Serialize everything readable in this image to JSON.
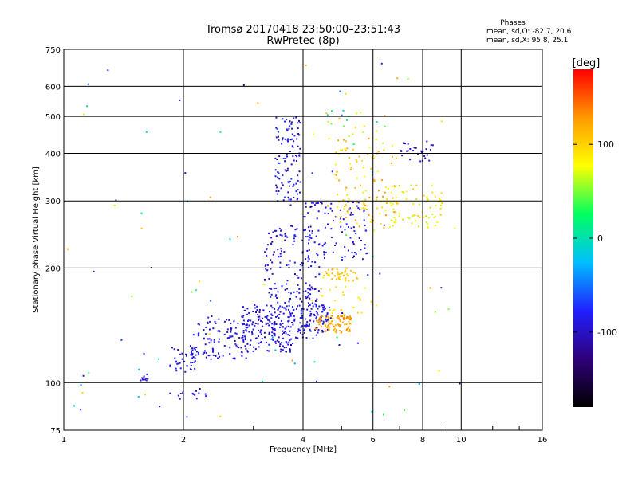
{
  "chart_data": {
    "type": "scatter",
    "title": "Tromsø 20170418 23:50:00–23:51:43",
    "subtitle": "RwPretec (8p)",
    "xlabel": "Frequency [MHz]",
    "ylabel": "Stationary phase Virtual Height [km]",
    "x_scale": "log",
    "y_scale": "log",
    "xlim": [
      1,
      16
    ],
    "ylim": [
      75,
      750
    ],
    "x_ticks": [
      1,
      2,
      4,
      6,
      8,
      10,
      16
    ],
    "y_ticks": [
      75,
      100,
      200,
      300,
      400,
      500,
      600,
      750
    ],
    "x_grid": [
      2,
      4,
      6,
      8,
      10
    ],
    "y_grid": [
      100,
      200,
      300,
      400,
      500,
      600
    ],
    "grid": true,
    "stats_heading": "Phases",
    "stats_line_o": "mean, sd,O: -82.7, 20.6",
    "stats_line_x": "mean, sd,X:  95.8, 25.1",
    "colorbar": {
      "label": "[deg]",
      "range": [
        -180,
        180
      ],
      "ticks": [
        100,
        0,
        -100
      ],
      "stops": [
        "#000000",
        "#30007a",
        "#2020ff",
        "#00bfff",
        "#00ff60",
        "#ffff00",
        "#ff9900",
        "#ff0000"
      ]
    },
    "clusters": [
      {
        "f": [
          1.85,
          2.15
        ],
        "h": [
          105,
          125
        ],
        "phase": [
          -115,
          -70
        ],
        "n": 40
      },
      {
        "f": [
          2.1,
          2.9
        ],
        "h": [
          115,
          150
        ],
        "phase": [
          -115,
          -70
        ],
        "n": 110
      },
      {
        "f": [
          2.8,
          3.8
        ],
        "h": [
          120,
          160
        ],
        "phase": [
          -115,
          -70
        ],
        "n": 170
      },
      {
        "f": [
          3.2,
          4.4
        ],
        "h": [
          130,
          260
        ],
        "phase": [
          -115,
          -70
        ],
        "n": 220
      },
      {
        "f": [
          3.4,
          3.95
        ],
        "h": [
          300,
          500
        ],
        "phase": [
          -120,
          -60
        ],
        "n": 110
      },
      {
        "f": [
          3.9,
          4.7
        ],
        "h": [
          135,
          160
        ],
        "phase": [
          -110,
          -70
        ],
        "n": 80
      },
      {
        "f": [
          4.0,
          5.8
        ],
        "h": [
          210,
          300
        ],
        "phase": [
          -115,
          -70
        ],
        "n": 100
      },
      {
        "f": [
          4.3,
          5.3
        ],
        "h": [
          135,
          150
        ],
        "phase": [
          110,
          140
        ],
        "n": 90
      },
      {
        "f": [
          4.5,
          5.5
        ],
        "h": [
          185,
          200
        ],
        "phase": [
          90,
          120
        ],
        "n": 45
      },
      {
        "f": [
          4.2,
          6.0
        ],
        "h": [
          150,
          180
        ],
        "phase": [
          80,
          110
        ],
        "n": 25
      },
      {
        "f": [
          4.8,
          7.0
        ],
        "h": [
          250,
          420
        ],
        "phase": [
          70,
          130
        ],
        "n": 110
      },
      {
        "f": [
          6.5,
          9.0
        ],
        "h": [
          255,
          330
        ],
        "phase": [
          60,
          110
        ],
        "n": 70
      },
      {
        "f": [
          7.0,
          8.5
        ],
        "h": [
          380,
          430
        ],
        "phase": [
          -120,
          -80
        ],
        "n": 30
      },
      {
        "f": [
          4.2,
          6.5
        ],
        "h": [
          420,
          520
        ],
        "phase": [
          -30,
          140
        ],
        "n": 30
      },
      {
        "f": [
          1.0,
          10.0
        ],
        "h": [
          80,
          700
        ],
        "phase": [
          -130,
          140
        ],
        "n": 90
      },
      {
        "f": [
          1.85,
          2.3
        ],
        "h": [
          88,
          97
        ],
        "phase": [
          -115,
          -70
        ],
        "n": 15
      },
      {
        "f": [
          1.55,
          1.65
        ],
        "h": [
          101,
          106
        ],
        "phase": [
          -110,
          -80
        ],
        "n": 10
      }
    ]
  }
}
